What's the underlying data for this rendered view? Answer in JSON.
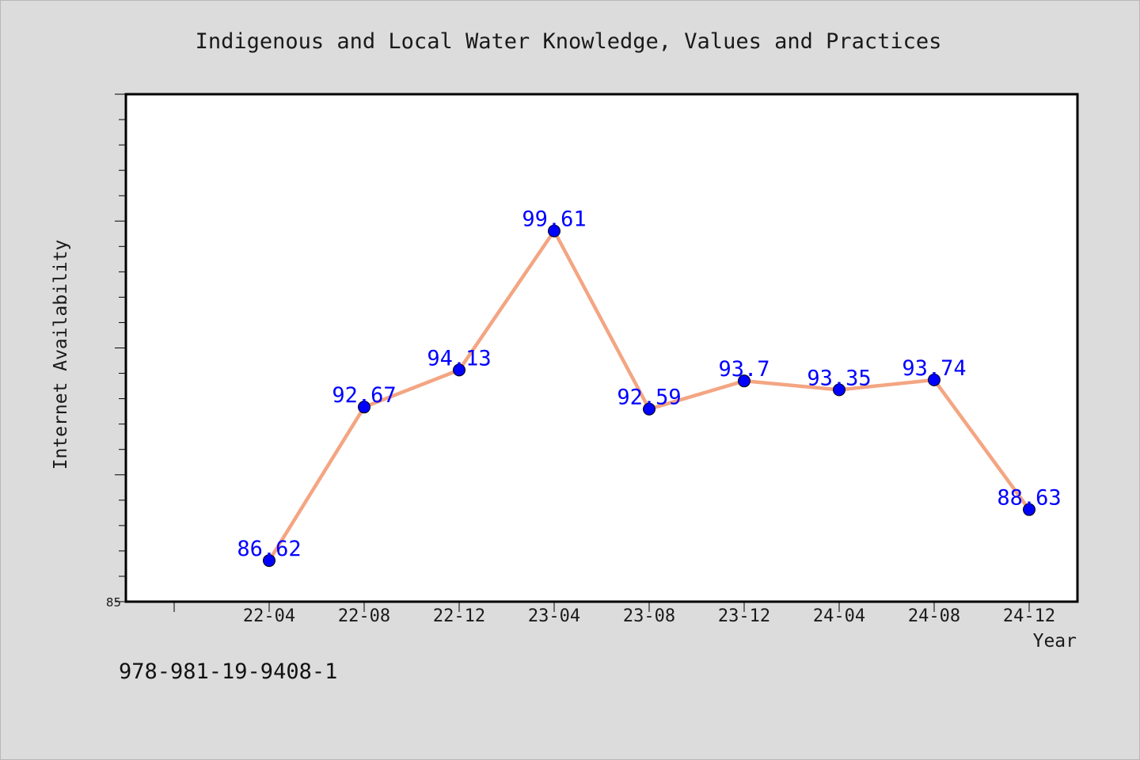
{
  "footer_text": "978-981-19-9408-1",
  "chart_data": {
    "type": "line",
    "title": "Indigenous and Local Water Knowledge, Values and Practices",
    "xlabel": "Year",
    "ylabel": "Internet Availability",
    "categories": [
      "22-04",
      "22-08",
      "22-12",
      "23-04",
      "23-08",
      "23-12",
      "24-04",
      "24-08",
      "24-12"
    ],
    "values": [
      86.62,
      92.67,
      94.13,
      99.61,
      92.59,
      93.7,
      93.35,
      93.74,
      88.63
    ],
    "value_labels": [
      "86.62",
      "92.67",
      "94.13",
      "99.61",
      "92.59",
      "93.7",
      "93.35",
      "93.74",
      "88.63"
    ],
    "ylim": [
      85,
      105
    ],
    "yticks_labeled": [
      {
        "value": 85,
        "label": "85"
      }
    ],
    "grid": false,
    "colors": {
      "line": "#f4a582",
      "marker": "#0000ff",
      "labels": "#0000ff",
      "plot_bg": "#ffffff",
      "page_bg": "#dcdcdc"
    }
  }
}
